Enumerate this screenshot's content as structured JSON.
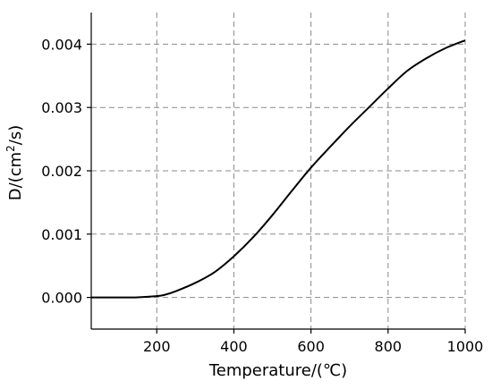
{
  "chart_data": {
    "type": "line",
    "title": "",
    "xlabel": "Temperature/(℃)",
    "ylabel_main": "D/(cm",
    "ylabel_sup": "2",
    "ylabel_tail": "/s)",
    "xlim": [
      30,
      1000
    ],
    "ylim": [
      -0.0005,
      0.0045
    ],
    "xticks": [
      200,
      400,
      600,
      800,
      1000
    ],
    "xtick_labels": [
      "200",
      "400",
      "600",
      "800",
      "1000"
    ],
    "yticks": [
      0.0,
      0.001,
      0.002,
      0.003,
      0.004
    ],
    "ytick_labels": [
      "0.000",
      "0.001",
      "0.002",
      "0.003",
      "0.004"
    ],
    "grid": true,
    "series": [
      {
        "x": [
          30,
          100,
          150,
          200,
          220,
          250,
          300,
          350,
          400,
          450,
          500,
          550,
          600,
          650,
          700,
          750,
          800,
          850,
          900,
          950,
          1000
        ],
        "y": [
          0.0,
          0.0,
          2e-06,
          2e-05,
          4e-05,
          0.0001,
          0.00023,
          0.0004,
          0.00065,
          0.00095,
          0.0013,
          0.00168,
          0.00205,
          0.00238,
          0.0027,
          0.003,
          0.0033,
          0.00358,
          0.00378,
          0.00394,
          0.00406
        ]
      }
    ]
  }
}
